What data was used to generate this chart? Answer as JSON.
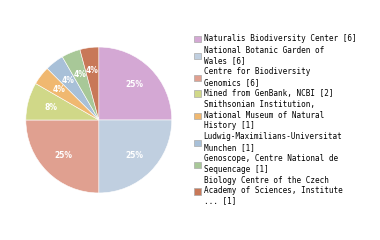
{
  "labels": [
    "Naturalis Biodiversity Center [6]",
    "National Botanic Garden of\nWales [6]",
    "Centre for Biodiversity\nGenomics [6]",
    "Mined from GenBank, NCBI [2]",
    "Smithsonian Institution,\nNational Museum of Natural\nHistory [1]",
    "Ludwig-Maximilians-Universitat\nMunchen [1]",
    "Genoscope, Centre National de\nSequencage [1]",
    "Biology Centre of the Czech\nAcademy of Sciences, Institute\n... [1]"
  ],
  "values": [
    6,
    6,
    6,
    2,
    1,
    1,
    1,
    1
  ],
  "colors": [
    "#d4a8d4",
    "#c0cfe0",
    "#e0a090",
    "#d0d888",
    "#f0b870",
    "#a8c0d8",
    "#a8c898",
    "#c87858"
  ],
  "startangle": 90,
  "background_color": "#ffffff",
  "pct_fontsize": 5.5,
  "legend_fontsize": 5.5
}
